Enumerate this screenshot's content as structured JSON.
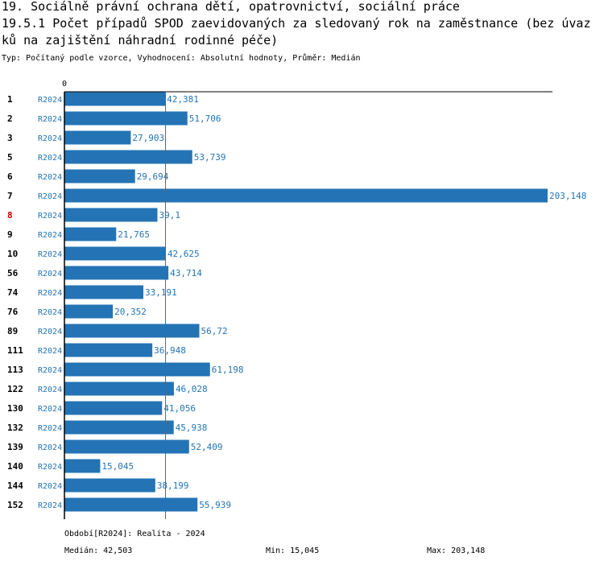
{
  "header": {
    "title_line1": "19. Sociálně právní ochrana dětí, opatrovnictví, sociální práce",
    "title_line2": "19.5.1 Počet případů SPOD zaevidovaných za sledovaný rok na zaměstnance (bez úvaz",
    "title_line3": "ků na zajištění náhradní rodinné péče)",
    "subtitle": "Typ: Počítaný podle vzorce, Vyhodnocení: Absolutní hodnoty, Průměr: Medián"
  },
  "chart_data": {
    "type": "bar",
    "orientation": "horizontal",
    "categories": [
      "1",
      "2",
      "3",
      "5",
      "6",
      "7",
      "8",
      "9",
      "10",
      "56",
      "74",
      "76",
      "89",
      "111",
      "113",
      "122",
      "130",
      "132",
      "139",
      "140",
      "144",
      "152"
    ],
    "series": [
      {
        "name": "R2024",
        "values": [
          42.381,
          51.706,
          27.903,
          53.739,
          29.694,
          203.148,
          39.1,
          21.765,
          42.625,
          43.714,
          33.191,
          20.352,
          56.72,
          36.948,
          61.198,
          46.028,
          41.056,
          45.938,
          52.409,
          15.045,
          38.199,
          55.939
        ],
        "value_labels": [
          "42,381",
          "51,706",
          "27,903",
          "53,739",
          "29,694",
          "203,148",
          "39,1",
          "21,765",
          "42,625",
          "43,714",
          "33,191",
          "20,352",
          "56,72",
          "36,948",
          "61,198",
          "46,028",
          "41,056",
          "45,938",
          "52,409",
          "15,045",
          "38,199",
          "55,939"
        ]
      }
    ],
    "highlight_category": "8",
    "xlim": [
      0,
      203.148
    ],
    "x_tick_label": "0",
    "median": 42.503,
    "colors": {
      "bar": "#2474b5",
      "series_label": "#2474b5",
      "value_label": "#2474b5",
      "highlight": "#cc0000",
      "axis": "#000000",
      "median_line": "#2474b5"
    }
  },
  "footer": {
    "period": "Období[R2024]: Realita - 2024",
    "median": "Medián: 42,503",
    "min": "Min: 15,045",
    "max": "Max: 203,148"
  }
}
